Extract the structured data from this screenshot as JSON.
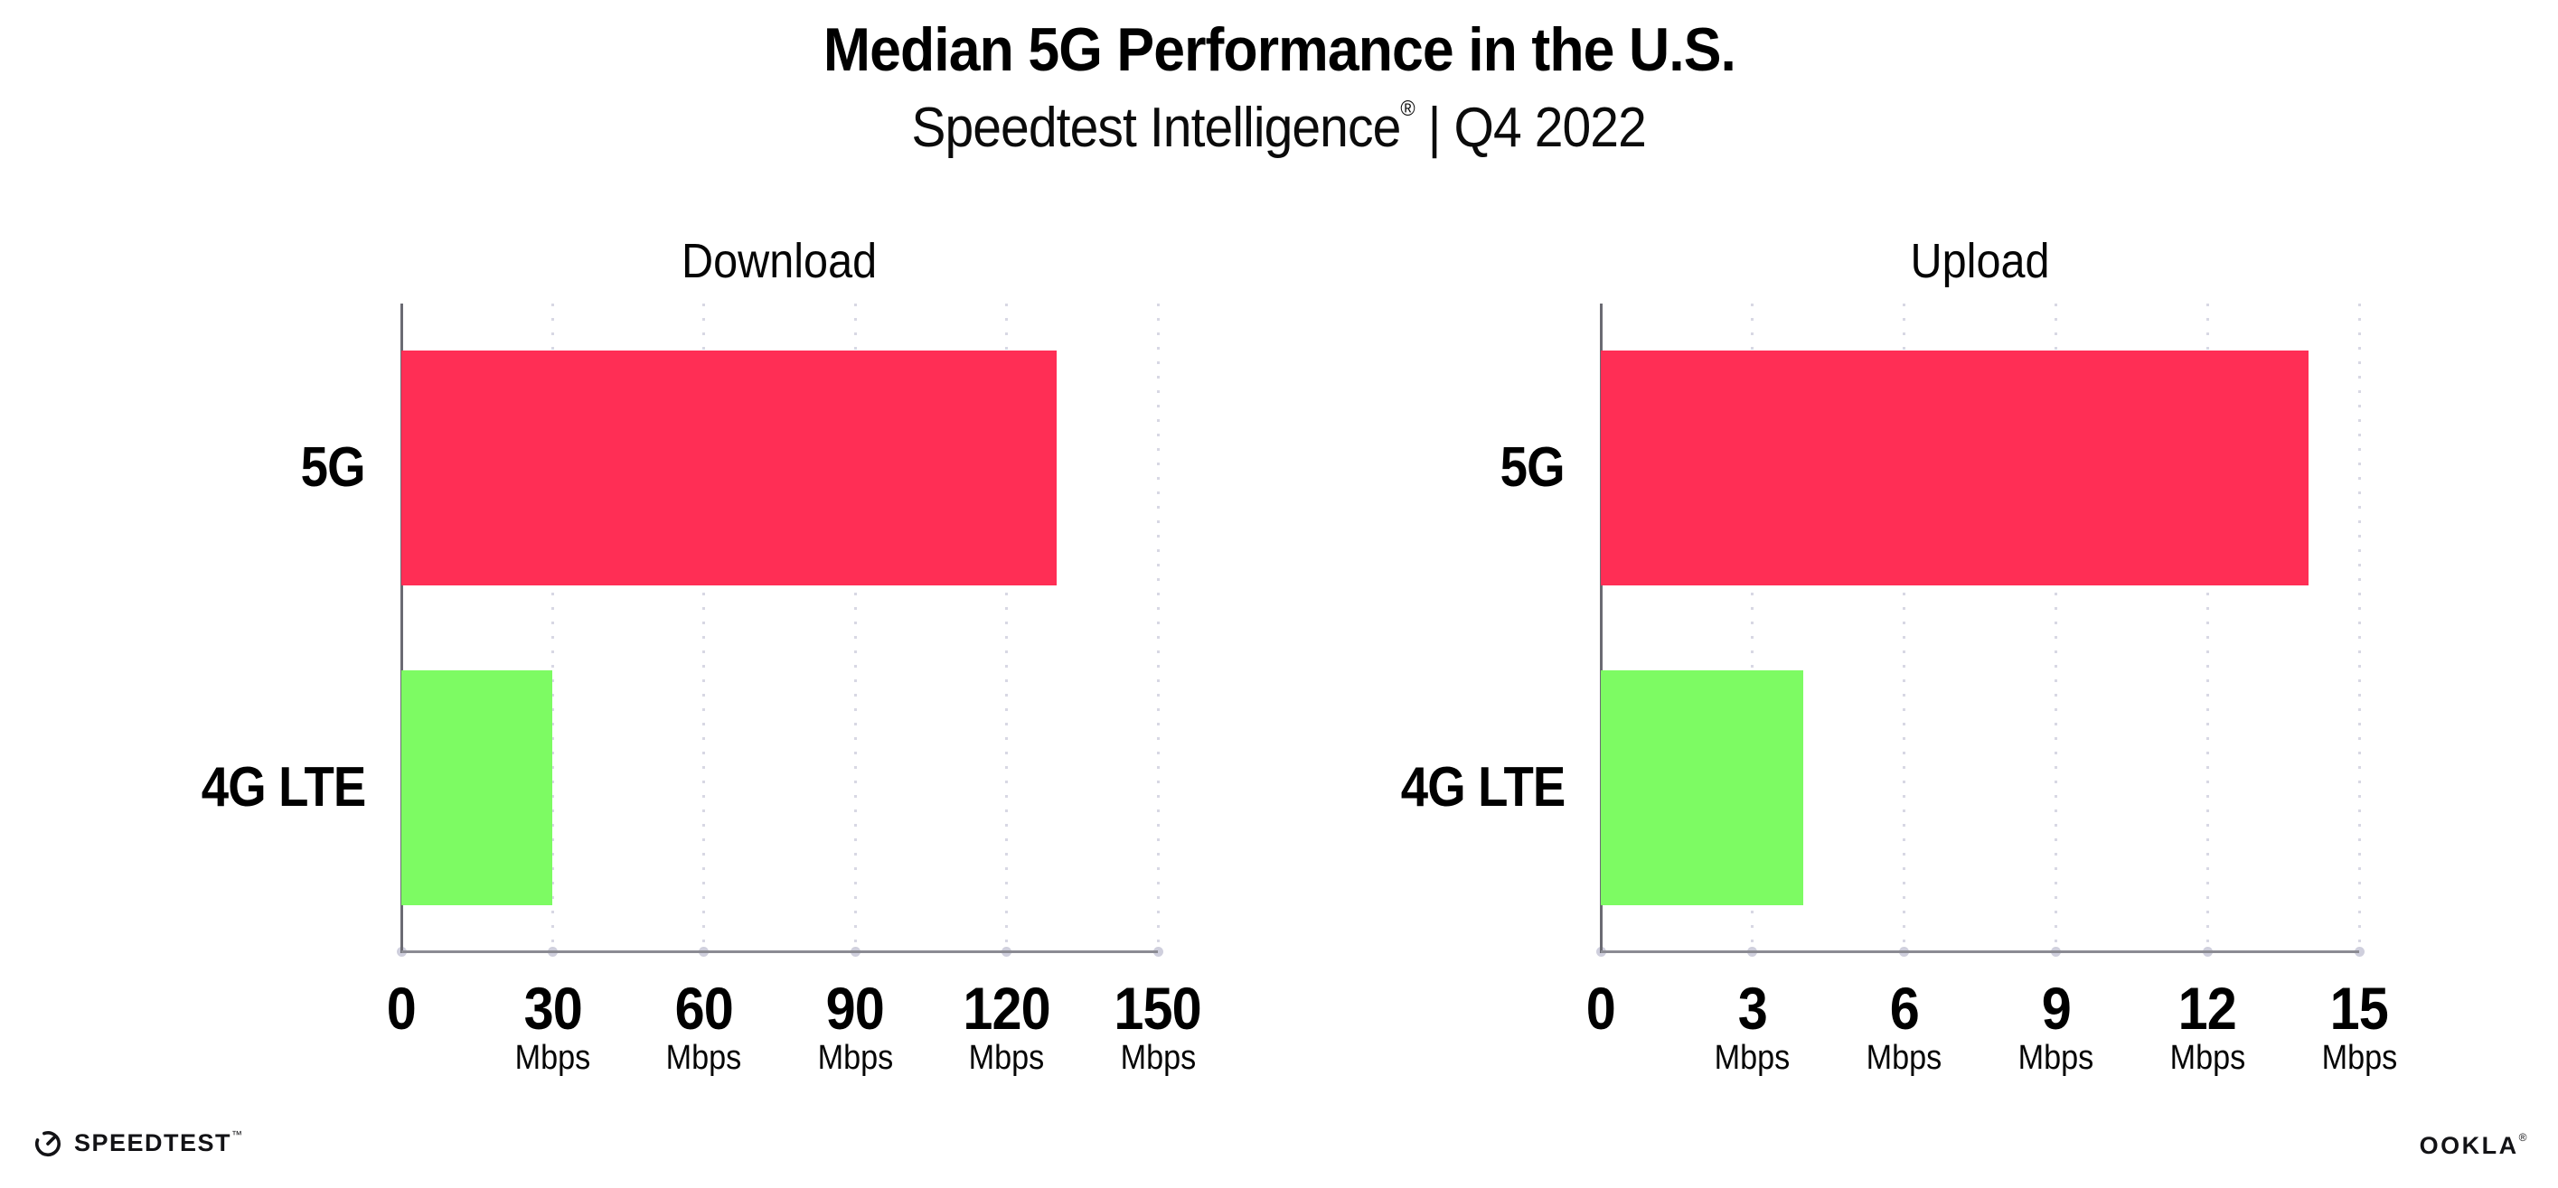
{
  "header": {
    "title": "Median 5G Performance in the U.S.",
    "subtitle": {
      "brand": "Speedtest Intelligence",
      "reg": "®",
      "sep": "|",
      "period": "Q4 2022"
    }
  },
  "footer": {
    "speedtest_label": "SPEEDTEST",
    "speedtest_tm": "™",
    "speedtest_icon": "gauge-icon",
    "ookla_label": "OOKLA",
    "ookla_reg": "®"
  },
  "colors": {
    "bar_5g": "#FF2E55",
    "bar_4g_lte": "#7DFB63",
    "grid_dots": "#D8D8E4",
    "tick_dots": "#CFCFDD",
    "axis_y": "#6B6B73",
    "axis_x": "#8B8B93",
    "text": "#000000"
  },
  "chart_data": [
    {
      "type": "bar",
      "orientation": "horizontal",
      "title": "Download",
      "categories": [
        "5G",
        "4G LTE"
      ],
      "values": [
        130,
        30
      ],
      "unit": "Mbps",
      "xlim": [
        0,
        150
      ],
      "xticks": [
        0,
        30,
        60,
        90,
        120,
        150
      ],
      "grid": "vertical-dotted",
      "legend": "none"
    },
    {
      "type": "bar",
      "orientation": "horizontal",
      "title": "Upload",
      "categories": [
        "5G",
        "4G LTE"
      ],
      "values": [
        14,
        4
      ],
      "unit": "Mbps",
      "xlim": [
        0,
        15
      ],
      "xticks": [
        0,
        3,
        6,
        9,
        12,
        15
      ],
      "grid": "vertical-dotted",
      "legend": "none"
    }
  ]
}
